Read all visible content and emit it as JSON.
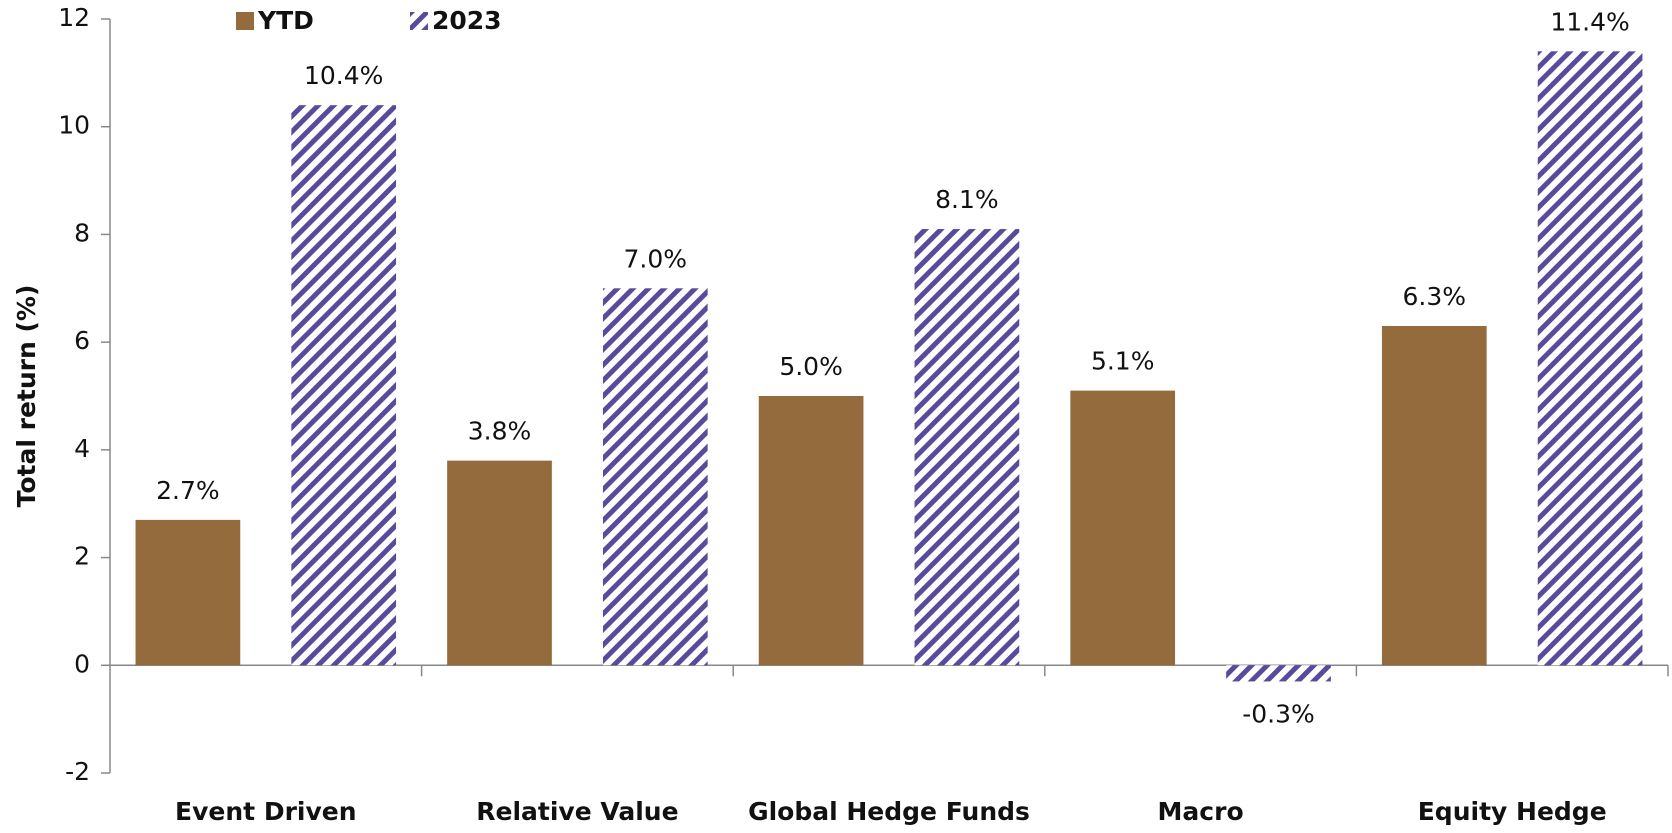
{
  "chart_data": {
    "type": "bar",
    "y_label": "Total return (%)",
    "categories": [
      "Event Driven",
      "Relative Value",
      "Global Hedge Funds",
      "Macro",
      "Equity Hedge"
    ],
    "series": [
      {
        "name": "YTD",
        "color": "#936b3c",
        "hatch": false,
        "values": [
          2.7,
          3.8,
          5.0,
          5.1,
          6.3
        ],
        "value_labels": [
          "2.7%",
          "3.8%",
          "5.0%",
          "5.1%",
          "6.3%"
        ]
      },
      {
        "name": "2023",
        "color": "#5a4a9c",
        "hatch": true,
        "values": [
          10.4,
          7.0,
          8.1,
          -0.3,
          11.4
        ],
        "value_labels": [
          "10.4%",
          "7.0%",
          "8.1%",
          "-0.3%",
          "11.4%"
        ]
      }
    ],
    "ylim": [
      -2,
      12
    ],
    "yticks": [
      -2,
      0,
      2,
      4,
      6,
      8,
      10,
      12
    ],
    "grid": false,
    "legend": "top"
  }
}
